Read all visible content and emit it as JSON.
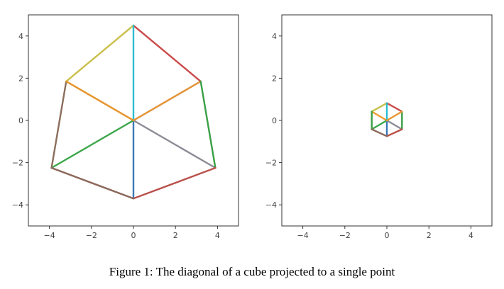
{
  "caption": "Figure 1: The diagonal of a cube projected to a single point",
  "chart_data": [
    {
      "type": "line",
      "xlim": [
        -5,
        5
      ],
      "ylim": [
        -5,
        5
      ],
      "xticks": [
        -4,
        -2,
        0,
        2,
        4
      ],
      "yticks": [
        -4,
        -2,
        0,
        2,
        4
      ],
      "tick_labels": [
        "−4",
        "−2",
        "0",
        "2",
        "4"
      ],
      "grid": false,
      "series": [
        {
          "color": "#3a78b8",
          "points": [
            [
              0,
              0
            ],
            [
              0,
              -3.7
            ]
          ]
        },
        {
          "color": "#ef9b33",
          "points": [
            [
              0,
              0
            ],
            [
              -3.2,
              1.85
            ]
          ]
        },
        {
          "color": "#3ca64a",
          "points": [
            [
              0,
              0
            ],
            [
              -3.9,
              -2.25
            ]
          ]
        },
        {
          "color": "#cc4a4a",
          "points": [
            [
              0,
              4.5
            ],
            [
              3.2,
              1.85
            ]
          ]
        },
        {
          "color": "#9a7be0",
          "points": [
            [
              0,
              0
            ],
            [
              3.2,
              1.85
            ]
          ]
        },
        {
          "color": "#8b6f5c",
          "points": [
            [
              -3.2,
              1.85
            ],
            [
              -3.9,
              -2.25
            ]
          ]
        },
        {
          "color": "#e88cc9",
          "points": [
            [
              -3.9,
              -2.25
            ],
            [
              0,
              -3.7
            ]
          ]
        },
        {
          "color": "#8c8c96",
          "points": [
            [
              0,
              0
            ],
            [
              3.9,
              -2.25
            ]
          ]
        },
        {
          "color": "#c8c04a",
          "points": [
            [
              -3.2,
              1.85
            ],
            [
              0,
              4.5
            ]
          ]
        },
        {
          "color": "#2bbdd0",
          "points": [
            [
              0,
              0
            ],
            [
              0,
              4.5
            ]
          ]
        },
        {
          "color": "#e6962f",
          "points": [
            [
              -3.2,
              1.85
            ],
            [
              0,
              0
            ],
            [
              3.2,
              1.85
            ]
          ]
        },
        {
          "color": "#3a9f45",
          "points": [
            [
              3.2,
              1.85
            ],
            [
              3.9,
              -2.25
            ]
          ]
        },
        {
          "color": "#b8514a",
          "points": [
            [
              0,
              -3.7
            ],
            [
              3.9,
              -2.25
            ]
          ]
        },
        {
          "color": "#8b6a5a",
          "points": [
            [
              -3.9,
              -2.25
            ],
            [
              0,
              -3.7
            ]
          ]
        }
      ]
    },
    {
      "type": "line",
      "xlim": [
        -5,
        5
      ],
      "ylim": [
        -5,
        5
      ],
      "xticks": [
        -4,
        -2,
        0,
        2,
        4
      ],
      "yticks": [
        -4,
        -2,
        0,
        2,
        4
      ],
      "tick_labels": [
        "−4",
        "−2",
        "0",
        "2",
        "4"
      ],
      "grid": false,
      "series": [
        {
          "color": "#3a78b8",
          "points": [
            [
              0,
              0
            ],
            [
              0,
              -0.75
            ]
          ]
        },
        {
          "color": "#ef9b33",
          "points": [
            [
              0,
              0
            ],
            [
              -0.72,
              0.42
            ]
          ]
        },
        {
          "color": "#3ca64a",
          "points": [
            [
              0,
              0
            ],
            [
              -0.72,
              -0.42
            ]
          ]
        },
        {
          "color": "#cc4a4a",
          "points": [
            [
              0,
              0.82
            ],
            [
              0.72,
              0.42
            ]
          ]
        },
        {
          "color": "#8c8c96",
          "points": [
            [
              0,
              0
            ],
            [
              0.72,
              -0.42
            ]
          ]
        },
        {
          "color": "#c8c04a",
          "points": [
            [
              -0.72,
              0.42
            ],
            [
              0,
              0.82
            ]
          ]
        },
        {
          "color": "#2bbdd0",
          "points": [
            [
              0,
              0
            ],
            [
              0,
              0.82
            ]
          ]
        },
        {
          "color": "#3a9f45",
          "points": [
            [
              -0.72,
              0.42
            ],
            [
              -0.72,
              -0.42
            ]
          ]
        },
        {
          "color": "#3a9f45",
          "points": [
            [
              0.72,
              0.42
            ],
            [
              0.72,
              -0.42
            ]
          ]
        },
        {
          "color": "#b8514a",
          "points": [
            [
              0,
              -0.75
            ],
            [
              0.72,
              -0.42
            ]
          ]
        },
        {
          "color": "#8b6a5a",
          "points": [
            [
              -0.72,
              -0.42
            ],
            [
              0,
              -0.75
            ]
          ]
        },
        {
          "color": "#e6962f",
          "points": [
            [
              0,
              0
            ],
            [
              0.72,
              0.42
            ]
          ]
        }
      ]
    }
  ]
}
